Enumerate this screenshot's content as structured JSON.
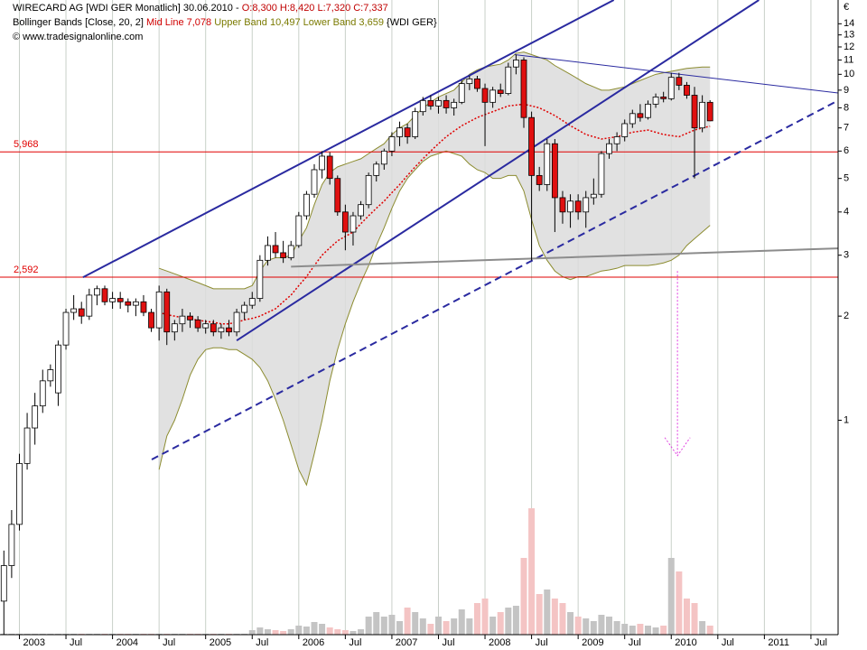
{
  "chart_data": {
    "type": "candlestick",
    "title": "WIRECARD AG [WDI GER  Monatlich] 30.06.2010 - ",
    "ohlc_label": "O:8,300 H:8,420 L:7,320 C:7,337",
    "legend": [
      "Bollinger Bands [Close, 20, 2]",
      "Mid Line 7,078",
      "Upper Band 10,497 Lower Band 3,659",
      "{WDI GER}"
    ],
    "legend_colors": [
      "#000000",
      "#d00000",
      "#7a7a00",
      "#000000"
    ],
    "source": "© www.tradesignalonline.com",
    "y_axis_label": "€",
    "log_scale": true,
    "ylim": [
      0.24,
      16.4
    ],
    "yticks": [
      1,
      2,
      3,
      4,
      5,
      6,
      7,
      8,
      9,
      10,
      11,
      12,
      13,
      14
    ],
    "categories": [
      null,
      null,
      "2003",
      null,
      null,
      null,
      null,
      null,
      "Jul",
      null,
      null,
      null,
      null,
      null,
      "2004",
      null,
      null,
      null,
      null,
      null,
      "Jul",
      null,
      null,
      null,
      null,
      null,
      "2005",
      null,
      null,
      null,
      null,
      null,
      "Jul",
      null,
      null,
      null,
      null,
      null,
      "2006",
      null,
      null,
      null,
      null,
      null,
      "Jul",
      null,
      null,
      null,
      null,
      null,
      "2007",
      null,
      null,
      null,
      null,
      null,
      "Jul",
      null,
      null,
      null,
      null,
      null,
      "2008",
      null,
      null,
      null,
      null,
      null,
      "Jul",
      null,
      null,
      null,
      null,
      null,
      "2009",
      null,
      null,
      null,
      null,
      null,
      "Jul",
      null,
      null,
      null,
      null,
      null,
      "2010",
      null,
      null,
      null,
      null,
      null,
      "Jul",
      null,
      null,
      null,
      null,
      null,
      "2011",
      null,
      null,
      null,
      null,
      null,
      "Jul",
      null,
      null,
      null
    ],
    "up_color": "#ffffff",
    "down_color": "#e01010",
    "open": [
      0.3,
      0.38,
      0.5,
      0.75,
      0.95,
      1.1,
      1.3,
      1.2,
      1.65,
      2.05,
      2.1,
      2.0,
      2.3,
      2.4,
      2.2,
      2.25,
      2.2,
      2.15,
      2.2,
      2.05,
      1.85,
      2.35,
      1.8,
      1.9,
      2.0,
      1.95,
      1.85,
      1.9,
      1.8,
      1.85,
      1.8,
      2.05,
      2.15,
      2.25,
      2.9,
      3.2,
      3.05,
      2.95,
      3.2,
      3.9,
      4.5,
      5.3,
      5.8,
      5.0,
      4.0,
      3.5,
      3.9,
      4.2,
      5.1,
      5.5,
      6.0,
      6.6,
      7.0,
      6.6,
      7.8,
      8.4,
      8.1,
      8.4,
      8.0,
      8.3,
      9.4,
      9.7,
      9.1,
      8.3,
      9.0,
      8.8,
      10.5,
      11.0,
      7.5,
      5.1,
      4.8,
      6.3,
      4.4,
      4.0,
      4.3,
      4.0,
      4.4,
      4.5,
      5.9,
      6.3,
      6.6,
      7.2,
      7.7,
      7.5,
      8.2,
      8.6,
      8.5,
      9.8,
      9.3,
      8.7,
      7.0,
      8.3,
      null,
      null,
      null,
      null,
      null,
      null,
      null,
      null,
      null,
      null,
      null,
      null,
      null,
      null,
      null,
      null
    ],
    "high": [
      0.42,
      0.55,
      0.8,
      1.05,
      1.2,
      1.4,
      1.45,
      1.7,
      2.1,
      2.3,
      2.2,
      2.4,
      2.45,
      2.45,
      2.35,
      2.35,
      2.25,
      2.25,
      2.3,
      2.1,
      2.45,
      2.4,
      1.95,
      2.1,
      2.05,
      2.0,
      1.95,
      1.95,
      1.9,
      1.95,
      2.1,
      2.2,
      2.35,
      3.0,
      3.4,
      3.5,
      3.3,
      3.3,
      4.0,
      4.6,
      5.5,
      6.0,
      5.95,
      5.1,
      4.2,
      4.0,
      4.3,
      5.2,
      5.6,
      6.1,
      6.8,
      7.3,
      7.2,
      8.0,
      8.6,
      8.7,
      8.6,
      8.7,
      8.5,
      9.6,
      9.9,
      9.9,
      9.4,
      9.2,
      9.4,
      10.8,
      11.4,
      11.2,
      7.8,
      5.4,
      6.5,
      6.5,
      4.6,
      4.5,
      4.5,
      4.6,
      5.0,
      6.0,
      6.5,
      6.8,
      7.4,
      7.9,
      8.2,
      8.4,
      8.8,
      8.9,
      10.1,
      10.1,
      9.5,
      9.2,
      8.7,
      8.42,
      null,
      null,
      null,
      null,
      null,
      null,
      null,
      null,
      null,
      null,
      null,
      null,
      null,
      null,
      null,
      null
    ],
    "low": [
      0.24,
      0.35,
      0.48,
      0.72,
      0.85,
      1.05,
      1.25,
      1.1,
      1.6,
      1.95,
      1.9,
      1.95,
      2.15,
      2.15,
      2.1,
      2.1,
      2.05,
      2.0,
      2.0,
      1.8,
      1.7,
      1.65,
      1.7,
      1.8,
      1.85,
      1.8,
      1.78,
      1.75,
      1.72,
      1.75,
      1.75,
      1.95,
      2.1,
      2.2,
      2.8,
      2.95,
      2.85,
      2.9,
      3.15,
      3.8,
      4.4,
      5.0,
      4.8,
      3.9,
      3.1,
      3.2,
      3.8,
      4.1,
      4.9,
      5.3,
      5.8,
      6.2,
      6.3,
      6.5,
      7.6,
      7.9,
      7.7,
      7.7,
      7.6,
      8.2,
      9.0,
      8.9,
      6.2,
      8.0,
      8.6,
      8.7,
      10.0,
      7.0,
      2.9,
      4.6,
      4.6,
      3.5,
      3.7,
      3.6,
      3.8,
      3.6,
      4.2,
      4.4,
      5.7,
      6.0,
      6.4,
      7.0,
      7.3,
      7.4,
      8.0,
      8.3,
      8.4,
      9.0,
      8.5,
      5.0,
      6.8,
      7.32,
      null,
      null,
      null,
      null,
      null,
      null,
      null,
      null,
      null,
      null,
      null,
      null,
      null,
      null,
      null,
      null
    ],
    "close": [
      0.38,
      0.5,
      0.75,
      0.95,
      1.1,
      1.3,
      1.4,
      1.65,
      2.05,
      2.1,
      2.0,
      2.3,
      2.4,
      2.2,
      2.25,
      2.2,
      2.15,
      2.2,
      2.05,
      1.85,
      2.35,
      1.8,
      1.9,
      2.0,
      1.95,
      1.85,
      1.9,
      1.8,
      1.85,
      1.8,
      2.05,
      2.15,
      2.25,
      2.9,
      3.2,
      3.05,
      2.95,
      3.2,
      3.9,
      4.5,
      5.3,
      5.8,
      5.0,
      4.0,
      3.5,
      3.9,
      4.2,
      5.1,
      5.5,
      6.0,
      6.6,
      7.0,
      6.6,
      7.8,
      8.4,
      8.1,
      8.4,
      8.0,
      8.3,
      9.4,
      9.7,
      9.1,
      8.3,
      9.0,
      8.8,
      10.5,
      11.0,
      7.5,
      5.1,
      4.8,
      6.3,
      4.4,
      4.0,
      4.3,
      4.0,
      4.4,
      4.5,
      5.9,
      6.3,
      6.6,
      7.2,
      7.7,
      7.5,
      8.2,
      8.6,
      8.5,
      9.8,
      9.3,
      8.7,
      7.0,
      8.3,
      7.337,
      null,
      null,
      null,
      null,
      null,
      null,
      null,
      null,
      null,
      null,
      null,
      null,
      null,
      null,
      null,
      null
    ],
    "bands": [
      {
        "color": "#8c8c30",
        "fill": "#dcdcdc",
        "values": [
          null,
          null,
          null,
          null,
          null,
          null,
          null,
          null,
          null,
          null,
          null,
          null,
          null,
          null,
          null,
          null,
          null,
          null,
          null,
          null,
          2.75,
          2.7,
          2.65,
          2.6,
          2.55,
          2.5,
          2.45,
          2.4,
          2.4,
          2.4,
          2.4,
          2.4,
          2.45,
          2.7,
          2.9,
          2.95,
          2.95,
          3.0,
          3.3,
          3.6,
          4.2,
          4.8,
          5.2,
          5.4,
          5.5,
          5.6,
          5.7,
          5.9,
          6.1,
          6.3,
          6.7,
          7.0,
          7.2,
          7.6,
          8.0,
          8.3,
          8.6,
          8.8,
          9.0,
          9.5,
          10.0,
          10.3,
          10.5,
          10.6,
          10.7,
          11.0,
          11.5,
          11.6,
          11.4,
          11.2,
          11.0,
          10.6,
          10.3,
          10.0,
          9.7,
          9.4,
          9.2,
          9.0,
          9.0,
          9.1,
          9.2,
          9.4,
          9.6,
          9.8,
          10.0,
          10.1,
          10.2,
          10.3,
          10.4,
          10.45,
          10.5,
          10.497,
          null,
          null,
          null,
          null,
          null,
          null,
          null,
          null,
          null,
          null,
          null,
          null,
          null,
          null,
          null,
          null
        ]
      },
      {
        "color": "#8c8c30",
        "values": [
          null,
          null,
          null,
          null,
          null,
          null,
          null,
          null,
          null,
          null,
          null,
          null,
          null,
          null,
          null,
          null,
          null,
          null,
          null,
          null,
          0.72,
          0.9,
          1.0,
          1.15,
          1.35,
          1.5,
          1.6,
          1.62,
          1.62,
          1.6,
          1.6,
          1.55,
          1.5,
          1.42,
          1.3,
          1.15,
          1.0,
          0.85,
          0.72,
          0.65,
          0.8,
          1.0,
          1.3,
          1.6,
          1.9,
          2.2,
          2.5,
          2.8,
          3.2,
          3.6,
          4.1,
          4.6,
          5.0,
          5.3,
          5.6,
          5.8,
          5.9,
          6.0,
          5.9,
          5.8,
          5.5,
          5.3,
          5.2,
          5.0,
          5.0,
          5.1,
          5.1,
          4.6,
          3.8,
          3.2,
          2.9,
          2.7,
          2.6,
          2.55,
          2.6,
          2.6,
          2.65,
          2.7,
          2.72,
          2.75,
          2.8,
          2.8,
          2.8,
          2.8,
          2.82,
          2.85,
          2.9,
          3.0,
          3.2,
          3.35,
          3.5,
          3.659,
          null,
          null,
          null,
          null,
          null,
          null,
          null,
          null,
          null,
          null,
          null,
          null,
          null,
          null,
          null,
          null
        ]
      },
      {
        "color": "#e00000",
        "dashed": true,
        "values": [
          null,
          null,
          null,
          null,
          null,
          null,
          null,
          null,
          null,
          null,
          null,
          null,
          null,
          null,
          null,
          null,
          null,
          null,
          null,
          null,
          2.05,
          2.02,
          2.0,
          1.98,
          1.96,
          1.95,
          1.93,
          1.92,
          1.9,
          1.9,
          1.92,
          1.95,
          1.97,
          2.0,
          2.05,
          2.1,
          2.2,
          2.3,
          2.45,
          2.6,
          2.8,
          3.0,
          3.15,
          3.3,
          3.4,
          3.5,
          3.7,
          3.9,
          4.1,
          4.3,
          4.55,
          4.8,
          5.1,
          5.4,
          5.7,
          6.0,
          6.3,
          6.6,
          6.85,
          7.1,
          7.3,
          7.5,
          7.65,
          7.8,
          7.95,
          8.1,
          8.15,
          8.2,
          8.1,
          8.0,
          7.8,
          7.6,
          7.35,
          7.1,
          6.9,
          6.7,
          6.6,
          6.5,
          6.55,
          6.6,
          6.7,
          6.8,
          6.85,
          6.9,
          6.8,
          6.7,
          6.65,
          6.6,
          6.75,
          6.9,
          7.0,
          7.078,
          null,
          null,
          null,
          null,
          null,
          null,
          null,
          null,
          null,
          null,
          null,
          null,
          null,
          null,
          null,
          null
        ]
      }
    ],
    "volume": [
      1,
      1,
      1,
      1,
      1,
      1,
      1,
      1,
      1,
      1,
      1,
      1,
      1,
      1,
      1,
      1,
      1,
      1,
      1,
      1,
      1,
      1,
      1,
      1,
      1,
      1,
      1,
      1,
      1,
      1,
      1,
      1,
      5,
      8,
      6,
      5,
      4,
      6,
      10,
      9,
      14,
      12,
      8,
      6,
      5,
      4,
      6,
      20,
      25,
      20,
      22,
      15,
      30,
      25,
      18,
      12,
      20,
      15,
      18,
      28,
      18,
      35,
      40,
      20,
      25,
      30,
      32,
      85,
      140,
      45,
      50,
      40,
      35,
      25,
      20,
      18,
      15,
      22,
      20,
      15,
      12,
      10,
      12,
      10,
      8,
      10,
      85,
      70,
      40,
      35,
      15,
      10,
      null,
      null,
      null,
      null,
      null,
      null,
      null,
      null,
      null,
      null,
      null,
      null,
      null,
      null,
      null,
      null
    ],
    "volume_ylim": [
      0,
      150
    ],
    "volume_up_color": "#c4c4c4",
    "volume_down_color": "#f4c4c4",
    "levels": [
      {
        "value": 5.968,
        "label": "5,968"
      },
      {
        "value": 2.592,
        "label": "2,592"
      }
    ],
    "level_color": "#e00000",
    "trend_lines": [
      {
        "color": "#2a2aa0",
        "width": 2,
        "points": [
          [
            10.2,
            2.59
          ],
          [
            78.6,
            16.4
          ]
        ]
      },
      {
        "color": "#2a2aa0",
        "width": 2,
        "points": [
          [
            30.0,
            1.7
          ],
          [
            97.3,
            16.4
          ]
        ]
      },
      {
        "color": "#2a2aa0",
        "width": 1,
        "points": [
          [
            65.8,
            11.4
          ],
          [
            107.5,
            8.83
          ]
        ]
      },
      {
        "color": "#2a2aa0",
        "width": 2,
        "dashed": true,
        "points": [
          [
            19.05,
            0.77
          ],
          [
            107.5,
            8.4
          ]
        ]
      },
      {
        "color": "#8c8c8c",
        "width": 2,
        "points": [
          [
            37.0,
            2.78
          ],
          [
            107.5,
            3.14
          ]
        ]
      },
      {
        "color": "#e040e0",
        "width": 1,
        "dotted": true,
        "arrow": true,
        "points": [
          [
            86.8,
            2.7
          ],
          [
            86.8,
            0.79
          ]
        ]
      }
    ],
    "grid": true
  }
}
